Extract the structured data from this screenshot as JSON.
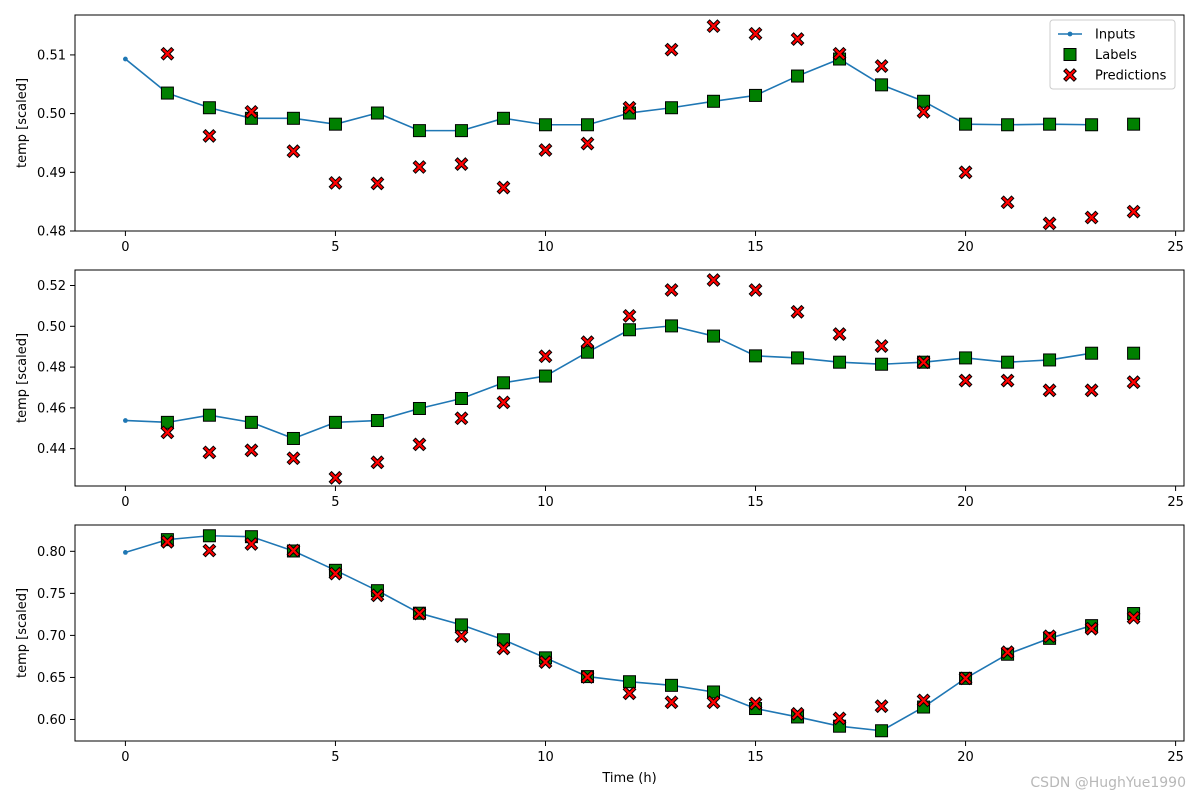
{
  "colors": {
    "inputs": "#1f77b4",
    "labels": "#008000",
    "predictions": "#ff0000",
    "edge": "#000000"
  },
  "watermark": "CSDN @HughYue1990",
  "chart_data": {
    "type": "line",
    "xlabel": "Time (h)",
    "xlim": [
      -1.2,
      25.2
    ],
    "xticks": [
      0,
      5,
      10,
      15,
      20,
      25
    ],
    "legend": {
      "location": "top-right",
      "entries": [
        "Inputs",
        "Labels",
        "Predictions"
      ]
    },
    "subplots": [
      {
        "ylabel": "temp [scaled]",
        "ylim": [
          0.48,
          0.5168
        ],
        "yticks": [
          0.48,
          0.49,
          0.5,
          0.51
        ],
        "ytick_labels": [
          "0.48",
          "0.49",
          "0.50",
          "0.51"
        ],
        "series": [
          {
            "name": "Inputs",
            "x": [
              0,
              1,
              2,
              3,
              4,
              5,
              6,
              7,
              8,
              9,
              10,
              11,
              12,
              13,
              14,
              15,
              16,
              17,
              18,
              19,
              20,
              21,
              22,
              23
            ],
            "values": [
              0.5093,
              0.5035,
              0.501,
              0.4992,
              0.4992,
              0.4982,
              0.5001,
              0.4971,
              0.4971,
              0.4992,
              0.4981,
              0.4981,
              0.5001,
              0.501,
              0.5021,
              0.5031,
              0.5064,
              0.5093,
              0.5049,
              0.5021,
              0.4982,
              0.4981,
              0.4982,
              0.4981
            ]
          },
          {
            "name": "Labels",
            "x": [
              1,
              2,
              3,
              4,
              5,
              6,
              7,
              8,
              9,
              10,
              11,
              12,
              13,
              14,
              15,
              16,
              17,
              18,
              19,
              20,
              21,
              22,
              23,
              24
            ],
            "values": [
              0.5035,
              0.501,
              0.4992,
              0.4992,
              0.4982,
              0.5001,
              0.4971,
              0.4971,
              0.4992,
              0.4981,
              0.4981,
              0.5001,
              0.501,
              0.5021,
              0.5031,
              0.5064,
              0.5093,
              0.5049,
              0.5021,
              0.4982,
              0.4981,
              0.4982,
              0.4981,
              0.4982
            ]
          },
          {
            "name": "Predictions",
            "x": [
              1,
              2,
              3,
              4,
              5,
              6,
              7,
              8,
              9,
              10,
              11,
              12,
              13,
              14,
              15,
              16,
              17,
              18,
              19,
              20,
              21,
              22,
              23,
              24
            ],
            "values": [
              0.5102,
              0.4962,
              0.5003,
              0.4936,
              0.4882,
              0.4881,
              0.4909,
              0.4914,
              0.4874,
              0.4938,
              0.4949,
              0.501,
              0.5109,
              0.5149,
              0.5136,
              0.5127,
              0.5102,
              0.5081,
              0.5003,
              0.49,
              0.4849,
              0.4813,
              0.4823,
              0.4833
            ]
          }
        ]
      },
      {
        "ylabel": "temp [scaled]",
        "ylim": [
          0.4217,
          0.5276
        ],
        "yticks": [
          0.44,
          0.46,
          0.48,
          0.5,
          0.52
        ],
        "ytick_labels": [
          "0.44",
          "0.46",
          "0.48",
          "0.50",
          "0.52"
        ],
        "series": [
          {
            "name": "Inputs",
            "x": [
              0,
              1,
              2,
              3,
              4,
              5,
              6,
              7,
              8,
              9,
              10,
              11,
              12,
              13,
              14,
              15,
              16,
              17,
              18,
              19,
              20,
              21,
              22,
              23
            ],
            "values": [
              0.4538,
              0.4529,
              0.4564,
              0.4529,
              0.445,
              0.4529,
              0.4538,
              0.4597,
              0.4646,
              0.4723,
              0.4756,
              0.4873,
              0.4983,
              0.5002,
              0.4952,
              0.4855,
              0.4845,
              0.4824,
              0.4814,
              0.4824,
              0.4845,
              0.4824,
              0.4835,
              0.4868
            ]
          },
          {
            "name": "Labels",
            "x": [
              1,
              2,
              3,
              4,
              5,
              6,
              7,
              8,
              9,
              10,
              11,
              12,
              13,
              14,
              15,
              16,
              17,
              18,
              19,
              20,
              21,
              22,
              23,
              24
            ],
            "values": [
              0.4529,
              0.4564,
              0.4529,
              0.445,
              0.4529,
              0.4538,
              0.4597,
              0.4646,
              0.4723,
              0.4756,
              0.4873,
              0.4983,
              0.5002,
              0.4952,
              0.4855,
              0.4845,
              0.4824,
              0.4814,
              0.4824,
              0.4845,
              0.4824,
              0.4835,
              0.4868,
              0.4868
            ]
          },
          {
            "name": "Predictions",
            "x": [
              1,
              2,
              3,
              4,
              5,
              6,
              7,
              8,
              9,
              10,
              11,
              12,
              13,
              14,
              15,
              16,
              17,
              18,
              19,
              20,
              21,
              22,
              23,
              24
            ],
            "values": [
              0.448,
              0.4382,
              0.4392,
              0.4353,
              0.4257,
              0.4333,
              0.4421,
              0.4549,
              0.4627,
              0.4853,
              0.4922,
              0.5051,
              0.5178,
              0.5227,
              0.5178,
              0.5071,
              0.4962,
              0.4903,
              0.4824,
              0.4734,
              0.4734,
              0.4686,
              0.4686,
              0.4726
            ]
          }
        ]
      },
      {
        "ylabel": "temp [scaled]",
        "ylim": [
          0.5744,
          0.8313
        ],
        "yticks": [
          0.6,
          0.65,
          0.7,
          0.75,
          0.8
        ],
        "ytick_labels": [
          "0.60",
          "0.65",
          "0.70",
          "0.75",
          "0.80"
        ],
        "series": [
          {
            "name": "Inputs",
            "x": [
              0,
              1,
              2,
              3,
              4,
              5,
              6,
              7,
              8,
              9,
              10,
              11,
              12,
              13,
              14,
              15,
              16,
              17,
              18,
              19,
              20,
              21,
              22,
              23
            ],
            "values": [
              0.7987,
              0.8139,
              0.8185,
              0.8174,
              0.8004,
              0.7774,
              0.7532,
              0.7264,
              0.7125,
              0.6948,
              0.6733,
              0.651,
              0.6449,
              0.6406,
              0.6327,
              0.613,
              0.603,
              0.592,
              0.5866,
              0.6148,
              0.6489,
              0.6776,
              0.6965,
              0.7116
            ]
          },
          {
            "name": "Labels",
            "x": [
              1,
              2,
              3,
              4,
              5,
              6,
              7,
              8,
              9,
              10,
              11,
              12,
              13,
              14,
              15,
              16,
              17,
              18,
              19,
              20,
              21,
              22,
              23,
              24
            ],
            "values": [
              0.8139,
              0.8185,
              0.8174,
              0.8004,
              0.7774,
              0.7532,
              0.7264,
              0.7125,
              0.6948,
              0.6733,
              0.651,
              0.6449,
              0.6406,
              0.6327,
              0.613,
              0.603,
              0.592,
              0.5866,
              0.6148,
              0.6489,
              0.6776,
              0.6965,
              0.7116,
              0.726
            ]
          },
          {
            "name": "Predictions",
            "x": [
              1,
              2,
              3,
              4,
              5,
              6,
              7,
              8,
              9,
              10,
              11,
              12,
              13,
              14,
              15,
              16,
              17,
              18,
              19,
              20,
              21,
              22,
              23,
              24
            ],
            "values": [
              0.8113,
              0.801,
              0.8087,
              0.801,
              0.7735,
              0.7477,
              0.726,
              0.699,
              0.6845,
              0.6683,
              0.6505,
              0.6311,
              0.6205,
              0.6205,
              0.6189,
              0.6067,
              0.6013,
              0.6158,
              0.6227,
              0.6489,
              0.68,
              0.699,
              0.708,
              0.721
            ]
          }
        ]
      }
    ]
  }
}
